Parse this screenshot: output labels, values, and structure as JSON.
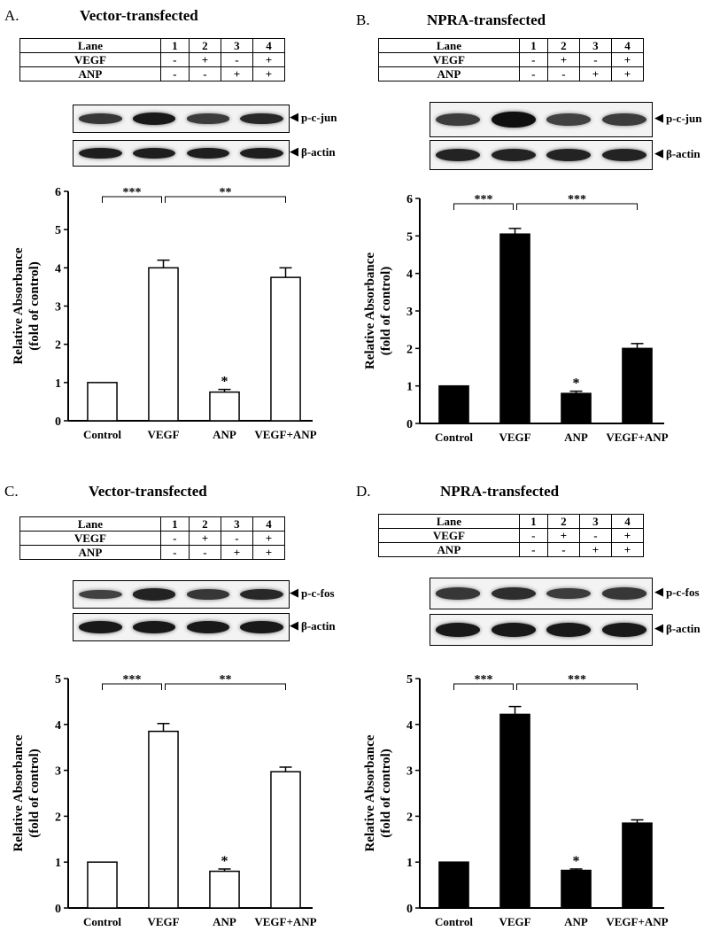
{
  "lane_table": {
    "header": "Lane",
    "lane_numbers": [
      "1",
      "2",
      "3",
      "4"
    ],
    "rows": [
      {
        "label": "VEGF",
        "cells": [
          "-",
          "+",
          "-",
          "+"
        ]
      },
      {
        "label": "ANP",
        "cells": [
          "-",
          "-",
          "+",
          "+"
        ]
      }
    ]
  },
  "panels": [
    {
      "letter": "A.",
      "title": "Vector-transfected",
      "blot_labels": [
        "p-c-jun",
        "β-actin"
      ],
      "band_intensity": [
        [
          0.55,
          0.85,
          0.5,
          0.7
        ],
        [
          0.8,
          0.8,
          0.8,
          0.8
        ]
      ],
      "bar_fill": "#ffffff"
    },
    {
      "letter": "B.",
      "title": "NPRA-transfected",
      "blot_labels": [
        "p-c-jun",
        "β-actin"
      ],
      "band_intensity": [
        [
          0.5,
          0.95,
          0.45,
          0.5
        ],
        [
          0.75,
          0.75,
          0.75,
          0.75
        ]
      ],
      "bar_fill": "#000000"
    },
    {
      "letter": "C.",
      "title": "Vector-transfected",
      "blot_labels": [
        "p-c-fos",
        "β-actin"
      ],
      "band_intensity": [
        [
          0.45,
          0.75,
          0.55,
          0.7
        ],
        [
          0.85,
          0.85,
          0.85,
          0.85
        ]
      ],
      "bar_fill": "#ffffff"
    },
    {
      "letter": "D.",
      "title": "NPRA-transfected",
      "blot_labels": [
        "p-c-fos",
        "β-actin"
      ],
      "band_intensity": [
        [
          0.55,
          0.65,
          0.5,
          0.55
        ],
        [
          0.85,
          0.85,
          0.85,
          0.85
        ]
      ],
      "bar_fill": "#000000"
    }
  ],
  "chart_data": [
    {
      "type": "bar",
      "panel": "A",
      "categories": [
        "Control",
        "VEGF",
        "ANP",
        "VEGF+ANP"
      ],
      "values": [
        1.0,
        4.0,
        0.75,
        3.75
      ],
      "errors": [
        0,
        0.2,
        0.07,
        0.25
      ],
      "ylabel": "Relative Absorbance",
      "ylabel2": "(fold of control)",
      "ylim": [
        0,
        6
      ],
      "yticks": [
        "0",
        "1",
        "2",
        "3",
        "4",
        "5",
        "6"
      ],
      "bar_color": "#ffffff",
      "significance": [
        {
          "from": 0,
          "to": 1,
          "label": "***"
        },
        {
          "from": 1,
          "to": 3,
          "label": "**"
        }
      ],
      "bar_marks": [
        {
          "bar": 2,
          "label": "*"
        }
      ]
    },
    {
      "type": "bar",
      "panel": "B",
      "categories": [
        "Control",
        "VEGF",
        "ANP",
        "VEGF+ANP"
      ],
      "values": [
        1.0,
        5.05,
        0.8,
        2.0
      ],
      "errors": [
        0,
        0.15,
        0.06,
        0.13
      ],
      "ylabel": "Relative Absorbance",
      "ylabel2": "(fold of control)",
      "ylim": [
        0,
        6
      ],
      "yticks": [
        "0",
        "1",
        "2",
        "3",
        "4",
        "5",
        "6"
      ],
      "bar_color": "#000000",
      "significance": [
        {
          "from": 0,
          "to": 1,
          "label": "***"
        },
        {
          "from": 1,
          "to": 3,
          "label": "***"
        }
      ],
      "bar_marks": [
        {
          "bar": 2,
          "label": "*"
        }
      ]
    },
    {
      "type": "bar",
      "panel": "C",
      "categories": [
        "Control",
        "VEGF",
        "ANP",
        "VEGF+ANP"
      ],
      "values": [
        1.0,
        3.85,
        0.8,
        2.97
      ],
      "errors": [
        0,
        0.17,
        0.05,
        0.1
      ],
      "ylabel": "Relative Absorbance",
      "ylabel2": "(fold of control)",
      "ylim": [
        0,
        5
      ],
      "yticks": [
        "0",
        "1",
        "2",
        "3",
        "4",
        "5"
      ],
      "bar_color": "#ffffff",
      "significance": [
        {
          "from": 0,
          "to": 1,
          "label": "***"
        },
        {
          "from": 1,
          "to": 3,
          "label": "**"
        }
      ],
      "bar_marks": [
        {
          "bar": 2,
          "label": "*"
        }
      ]
    },
    {
      "type": "bar",
      "panel": "D",
      "categories": [
        "Control",
        "VEGF",
        "ANP",
        "VEGF+ANP"
      ],
      "values": [
        1.0,
        4.22,
        0.82,
        1.85
      ],
      "errors": [
        0,
        0.17,
        0.03,
        0.07
      ],
      "ylabel": "Relative Absorbance",
      "ylabel2": "(fold of control)",
      "ylim": [
        0,
        5
      ],
      "yticks": [
        "0",
        "1",
        "2",
        "3",
        "4",
        "5"
      ],
      "bar_color": "#000000",
      "significance": [
        {
          "from": 0,
          "to": 1,
          "label": "***"
        },
        {
          "from": 1,
          "to": 3,
          "label": "***"
        }
      ],
      "bar_marks": [
        {
          "bar": 2,
          "label": "*"
        }
      ]
    }
  ]
}
